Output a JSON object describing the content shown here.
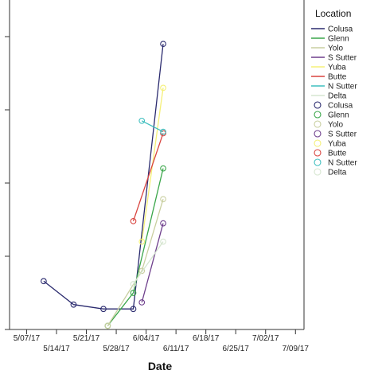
{
  "chart_data": {
    "type": "line",
    "xlabel": "Date",
    "ylabel": "",
    "x_tick_labels": [
      "5/07/17",
      "5/14/17",
      "5/21/17",
      "5/28/17",
      "6/04/17",
      "6/11/17",
      "6/18/17",
      "6/25/17",
      "7/02/17",
      "7/09/17"
    ],
    "x_tick_dates": [
      "2017-05-07",
      "2017-05-14",
      "2017-05-21",
      "2017-05-28",
      "2017-06-04",
      "2017-06-11",
      "2017-06-18",
      "2017-06-25",
      "2017-07-02",
      "2017-07-09"
    ],
    "xlim": [
      "2017-05-03",
      "2017-07-11"
    ],
    "ylim": [
      0,
      4.5
    ],
    "y_gridlines": [
      0,
      1,
      2,
      3,
      4
    ],
    "grid": false,
    "legend_title": "Location",
    "legend_position": "right",
    "series": [
      {
        "name": "Colusa",
        "color": "#2a2a6e",
        "points": [
          {
            "x": "2017-05-11",
            "y": 0.66
          },
          {
            "x": "2017-05-18",
            "y": 0.34
          },
          {
            "x": "2017-05-25",
            "y": 0.28
          },
          {
            "x": "2017-06-01",
            "y": 0.28
          },
          {
            "x": "2017-06-08",
            "y": 3.9
          }
        ]
      },
      {
        "name": "Glenn",
        "color": "#3aa64a",
        "points": [
          {
            "x": "2017-05-26",
            "y": 0.05
          },
          {
            "x": "2017-06-01",
            "y": 0.5
          },
          {
            "x": "2017-06-08",
            "y": 2.2
          }
        ]
      },
      {
        "name": "Yolo",
        "color": "#c9cfa0",
        "points": [
          {
            "x": "2017-05-26",
            "y": 0.05
          },
          {
            "x": "2017-06-03",
            "y": 0.8
          },
          {
            "x": "2017-06-08",
            "y": 1.78
          }
        ]
      },
      {
        "name": "S Sutter",
        "color": "#6e3f8c",
        "points": [
          {
            "x": "2017-06-03",
            "y": 0.37
          },
          {
            "x": "2017-06-08",
            "y": 1.45
          }
        ]
      },
      {
        "name": "Yuba",
        "color": "#f5f078",
        "points": [
          {
            "x": "2017-06-03",
            "y": 1.2
          },
          {
            "x": "2017-06-08",
            "y": 3.3
          }
        ]
      },
      {
        "name": "Butte",
        "color": "#d9443f",
        "points": [
          {
            "x": "2017-06-01",
            "y": 1.48
          },
          {
            "x": "2017-06-08",
            "y": 2.68
          }
        ]
      },
      {
        "name": "N Sutter",
        "color": "#3fbfbf",
        "points": [
          {
            "x": "2017-06-03",
            "y": 2.85
          },
          {
            "x": "2017-06-08",
            "y": 2.7
          }
        ]
      },
      {
        "name": "Delta",
        "color": "#d6e6d0",
        "points": [
          {
            "x": "2017-06-01",
            "y": 0.62
          },
          {
            "x": "2017-06-08",
            "y": 1.2
          }
        ]
      }
    ]
  }
}
